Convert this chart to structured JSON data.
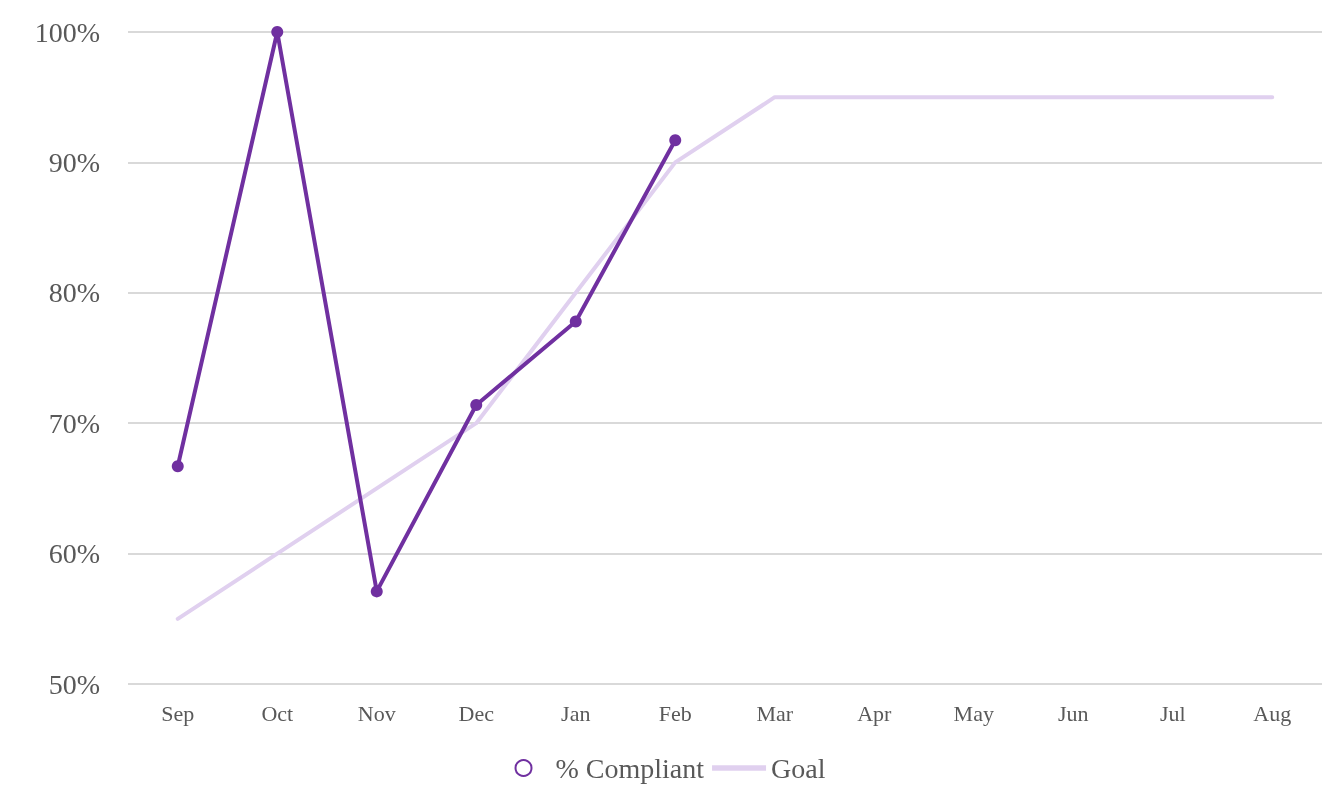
{
  "chart_data": {
    "type": "line",
    "categories": [
      "Sep",
      "Oct",
      "Nov",
      "Dec",
      "Jan",
      "Feb",
      "Mar",
      "Apr",
      "May",
      "Jun",
      "Jul",
      "Aug"
    ],
    "series": [
      {
        "name": "% Compliant",
        "color": "#7030a0",
        "marker": "circle",
        "values": [
          66.7,
          100,
          57.1,
          71.4,
          77.8,
          91.7,
          null,
          null,
          null,
          null,
          null,
          null
        ]
      },
      {
        "name": "Goal",
        "color": "#e0d0ef",
        "marker": "none",
        "values": [
          55,
          60,
          65,
          70,
          80,
          90,
          95,
          95,
          95,
          95,
          95,
          95
        ]
      }
    ],
    "ylim": [
      50,
      100
    ],
    "yticks": [
      {
        "value": 50,
        "label": "50%"
      },
      {
        "value": 60,
        "label": "60%"
      },
      {
        "value": 70,
        "label": "70%"
      },
      {
        "value": 80,
        "label": "80%"
      },
      {
        "value": 90,
        "label": "90%"
      },
      {
        "value": 100,
        "label": "100%"
      }
    ],
    "grid": "y",
    "legend": "bottom",
    "line_style": "solid"
  }
}
